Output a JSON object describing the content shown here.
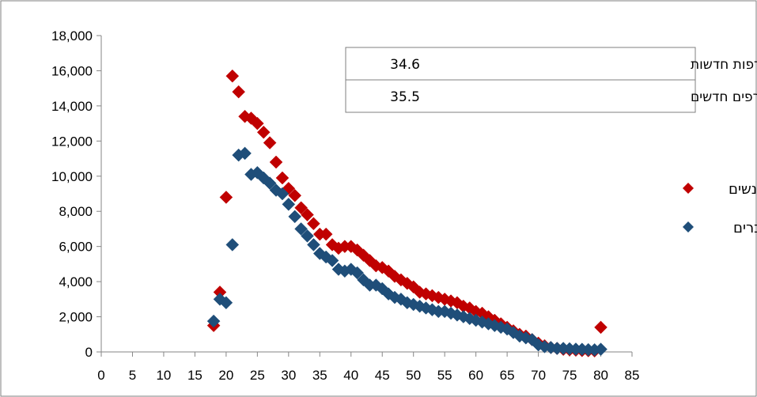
{
  "chart_data": {
    "type": "scatter",
    "title": "",
    "xlabel": "",
    "ylabel": "",
    "xlim": [
      0,
      85
    ],
    "ylim": [
      0,
      18000
    ],
    "x_ticks": [
      0,
      5,
      10,
      15,
      20,
      25,
      30,
      35,
      40,
      45,
      50,
      55,
      60,
      65,
      70,
      75,
      80,
      85
    ],
    "y_ticks": [
      0,
      2000,
      4000,
      6000,
      8000,
      10000,
      12000,
      14000,
      16000,
      18000
    ],
    "x_tick_labels": [
      "0",
      "5",
      "10",
      "15",
      "20",
      "25",
      "30",
      "35",
      "40",
      "45",
      "50",
      "55",
      "60",
      "65",
      "70",
      "75",
      "80",
      "85"
    ],
    "y_tick_labels": [
      "0",
      "2,000",
      "4,000",
      "6,000",
      "8,000",
      "10,000",
      "12,000",
      "14,000",
      "16,000",
      "18,000"
    ],
    "grid": false,
    "legend_position": "right",
    "marker": "diamond",
    "series": [
      {
        "name": "נשים",
        "color": "#c00000",
        "x": [
          18,
          19,
          20,
          21,
          22,
          23,
          24,
          25,
          26,
          27,
          28,
          29,
          30,
          31,
          32,
          33,
          34,
          35,
          36,
          37,
          38,
          39,
          40,
          41,
          42,
          43,
          44,
          45,
          46,
          47,
          48,
          49,
          50,
          51,
          52,
          53,
          54,
          55,
          56,
          57,
          58,
          59,
          60,
          61,
          62,
          63,
          64,
          65,
          66,
          67,
          68,
          69,
          70,
          71,
          72,
          73,
          74,
          75,
          76,
          77,
          78,
          79,
          80
        ],
        "y": [
          1500,
          3400,
          8800,
          15700,
          14800,
          13400,
          13300,
          13000,
          12500,
          11900,
          10800,
          9900,
          9300,
          8900,
          8200,
          7800,
          7300,
          6700,
          6700,
          6100,
          5900,
          6000,
          6000,
          5800,
          5500,
          5200,
          4900,
          4800,
          4600,
          4300,
          4100,
          3900,
          3700,
          3400,
          3300,
          3200,
          3100,
          3000,
          2900,
          2800,
          2600,
          2500,
          2300,
          2200,
          2000,
          1800,
          1600,
          1400,
          1200,
          1000,
          900,
          700,
          500,
          350,
          250,
          200,
          150,
          120,
          100,
          80,
          70,
          60,
          1400
        ]
      },
      {
        "name": "גברים",
        "color": "#1f4e79",
        "x": [
          18,
          19,
          20,
          21,
          22,
          23,
          24,
          25,
          26,
          27,
          28,
          29,
          30,
          31,
          32,
          33,
          34,
          35,
          36,
          37,
          38,
          39,
          40,
          41,
          42,
          43,
          44,
          45,
          46,
          47,
          48,
          49,
          50,
          51,
          52,
          53,
          54,
          55,
          56,
          57,
          58,
          59,
          60,
          61,
          62,
          63,
          64,
          65,
          66,
          67,
          68,
          69,
          70,
          71,
          72,
          73,
          74,
          75,
          76,
          77,
          78,
          79,
          80
        ],
        "y": [
          1750,
          3000,
          2800,
          6100,
          11200,
          11300,
          10100,
          10200,
          9900,
          9600,
          9200,
          9000,
          8400,
          7700,
          7000,
          6600,
          6100,
          5600,
          5400,
          5200,
          4700,
          4600,
          4700,
          4500,
          4100,
          3800,
          3800,
          3600,
          3300,
          3100,
          3000,
          2800,
          2700,
          2600,
          2500,
          2400,
          2300,
          2300,
          2200,
          2100,
          2000,
          1900,
          1800,
          1700,
          1600,
          1500,
          1400,
          1300,
          1100,
          900,
          800,
          700,
          400,
          300,
          250,
          200,
          200,
          180,
          160,
          150,
          130,
          120,
          150
        ]
      }
    ],
    "annotations": [
      {
        "label": "גיל ממוצע של מצטרפות חדשות",
        "value": "34.6"
      },
      {
        "label": "גיל ממוצע של מצטרפים חדשים",
        "value": "35.5"
      }
    ]
  }
}
